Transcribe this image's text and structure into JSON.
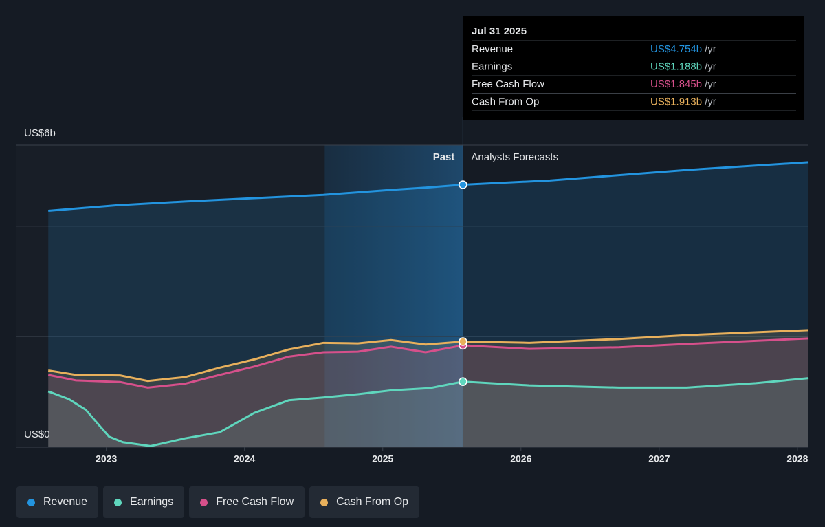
{
  "chart_data": {
    "type": "line",
    "top_label": "US$6b",
    "ylim": [
      0,
      5.47
    ],
    "yticks": [
      {
        "value": 0,
        "label": "US$0"
      }
    ],
    "gridlines": [
      2,
      4
    ],
    "xlim": [
      2022.35,
      2028.08
    ],
    "xticks": [
      2023,
      2024,
      2025,
      2026,
      2027,
      2028
    ],
    "past_label": "Past",
    "forecast_label": "Analysts Forecasts",
    "highlight_start": 2024.58,
    "divider_x": 2025.58,
    "series": [
      {
        "name": "Revenue",
        "color": "#2394df",
        "x": [
          2022.58,
          2023.07,
          2023.57,
          2024.07,
          2024.57,
          2025.06,
          2025.31,
          2025.58,
          2026.21,
          2027.2,
          2028.08
        ],
        "values": [
          4.28,
          4.38,
          4.45,
          4.51,
          4.57,
          4.66,
          4.7,
          4.754,
          4.83,
          5.02,
          5.16
        ]
      },
      {
        "name": "Earnings",
        "color": "#5fd6bd",
        "x": [
          2022.58,
          2022.73,
          2022.85,
          2023.02,
          2023.12,
          2023.32,
          2023.57,
          2023.82,
          2024.07,
          2024.32,
          2024.57,
          2024.82,
          2025.06,
          2025.34,
          2025.58,
          2026.06,
          2026.71,
          2027.2,
          2027.7,
          2028.08
        ],
        "values": [
          1.01,
          0.87,
          0.68,
          0.19,
          0.09,
          0.02,
          0.16,
          0.27,
          0.62,
          0.85,
          0.9,
          0.96,
          1.03,
          1.07,
          1.188,
          1.12,
          1.08,
          1.08,
          1.16,
          1.25
        ]
      },
      {
        "name": "Free Cash Flow",
        "color": "#d6508b",
        "x": [
          2022.58,
          2022.78,
          2023.1,
          2023.3,
          2023.57,
          2023.82,
          2024.07,
          2024.32,
          2024.57,
          2024.82,
          2025.06,
          2025.31,
          2025.58,
          2026.06,
          2026.71,
          2027.2,
          2028.08
        ],
        "values": [
          1.31,
          1.21,
          1.18,
          1.08,
          1.15,
          1.31,
          1.46,
          1.64,
          1.72,
          1.73,
          1.82,
          1.72,
          1.845,
          1.78,
          1.81,
          1.87,
          1.97
        ]
      },
      {
        "name": "Cash From Op",
        "color": "#e8b05c",
        "x": [
          2022.58,
          2022.78,
          2023.1,
          2023.3,
          2023.57,
          2023.82,
          2024.07,
          2024.32,
          2024.57,
          2024.82,
          2025.06,
          2025.31,
          2025.58,
          2026.06,
          2026.71,
          2027.2,
          2028.08
        ],
        "values": [
          1.39,
          1.31,
          1.3,
          1.2,
          1.27,
          1.44,
          1.59,
          1.77,
          1.89,
          1.88,
          1.94,
          1.86,
          1.913,
          1.89,
          1.96,
          2.03,
          2.12
        ]
      }
    ],
    "tooltip": {
      "date": "Jul 31 2025",
      "rows": [
        {
          "label": "Revenue",
          "value": "US$4.754b",
          "unit": "/yr"
        },
        {
          "label": "Earnings",
          "value": "US$1.188b",
          "unit": "/yr"
        },
        {
          "label": "Free Cash Flow",
          "value": "US$1.845b",
          "unit": "/yr"
        },
        {
          "label": "Cash From Op",
          "value": "US$1.913b",
          "unit": "/yr"
        }
      ]
    }
  }
}
